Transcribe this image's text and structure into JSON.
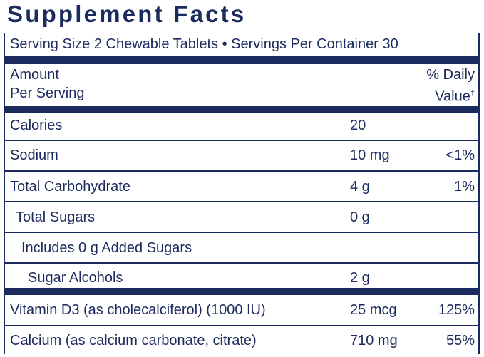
{
  "header": {
    "title": "Supplement Facts",
    "serving": "Serving Size 2 Chewable Tablets • Servings Per Container 30"
  },
  "table": {
    "columns": {
      "amount": [
        "Amount",
        "Per Serving"
      ],
      "daily_value": [
        "% Daily",
        "Value"
      ],
      "daily_value_mark": "†"
    },
    "rows": [
      {
        "name": "Calories",
        "amount": "20"
      },
      {
        "name": "Sodium",
        "amount": "10 mg",
        "daily_value": "<1%"
      },
      {
        "name": "Total Carbohydrate",
        "amount": "4 g",
        "daily_value": "1%"
      },
      {
        "name": "Total Sugars",
        "amount": "0 g"
      },
      {
        "name": "Includes 0 g Added Sugars"
      },
      {
        "name": "Sugar Alcohols",
        "amount": "2 g"
      },
      {
        "name": "Vitamin D3 (as cholecalciferol) (1000 IU)",
        "amount": "25 mcg",
        "daily_value": "125%"
      },
      {
        "name": "Calcium (as calcium carbonate, citrate)",
        "amount": "710 mg",
        "daily_value": "55%"
      }
    ]
  }
}
